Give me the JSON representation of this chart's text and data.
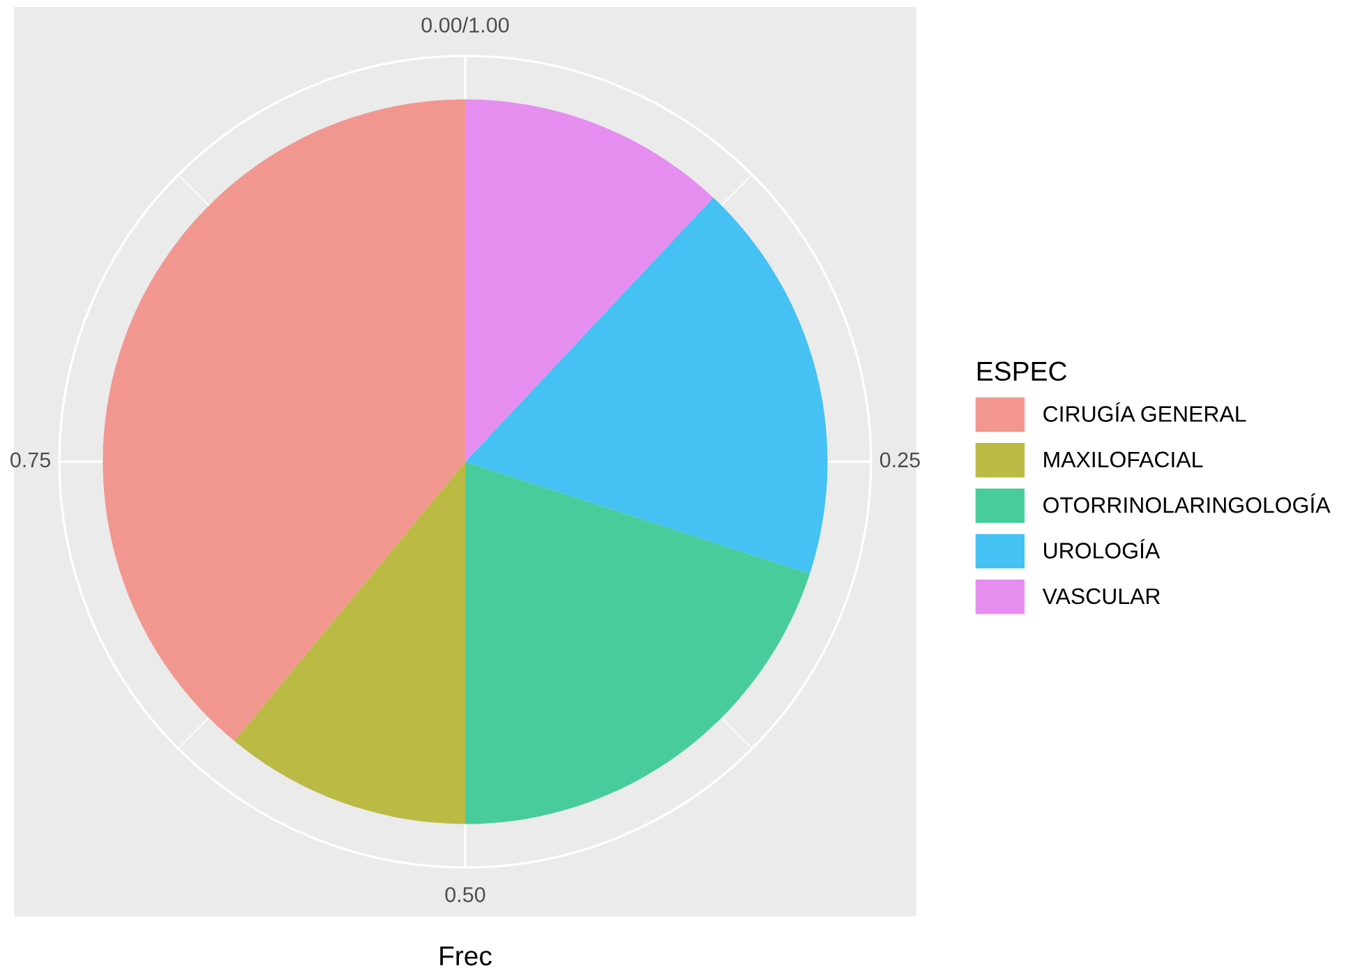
{
  "chart_data": {
    "type": "pie",
    "xlabel": "Frec",
    "legend_title": "ESPEC",
    "categories": [
      "CIRUGÍA GENERAL",
      "MAXILOFACIAL",
      "OTORRINOLARINGOLOGÍA",
      "UROLOGÍA",
      "VASCULAR"
    ],
    "values": [
      39,
      11,
      20,
      18,
      12
    ],
    "colors": [
      "#f2978f",
      "#bbba45",
      "#48cc9c",
      "#45c1f3",
      "#e68ef0"
    ],
    "annotations": [
      "0.00/1.00",
      "0.25",
      "0.50",
      "0.75"
    ],
    "grid": true,
    "legend": "right"
  }
}
